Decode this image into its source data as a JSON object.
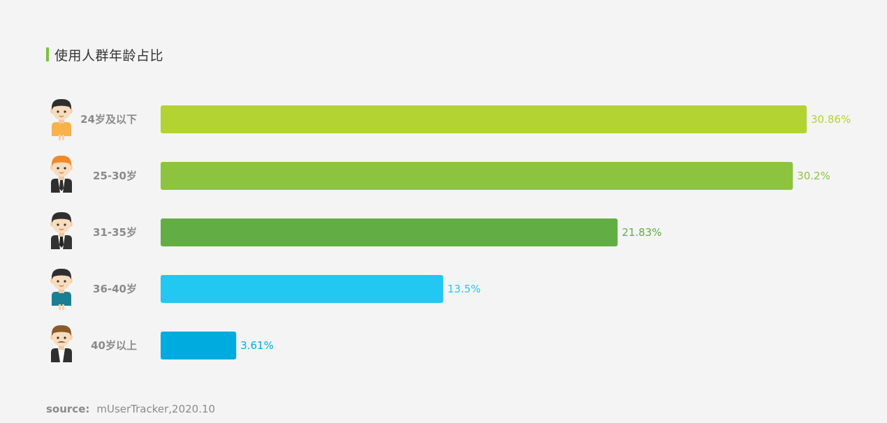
{
  "chart_data": {
    "type": "bar",
    "orientation": "horizontal",
    "title": "使用人群年龄占比",
    "categories": [
      "24岁及以下",
      "25-30岁",
      "31-35岁",
      "36-40岁",
      "40岁以上"
    ],
    "values": [
      30.86,
      30.2,
      21.83,
      13.5,
      3.61
    ],
    "value_labels": [
      "30.86%",
      "30.2%",
      "21.83%",
      "13.5%",
      "3.61%"
    ],
    "colors": [
      "#b3d332",
      "#8cc43f",
      "#63ad45",
      "#22c7f2",
      "#00abe0"
    ],
    "xlim": [
      0,
      30.86
    ],
    "grid": false,
    "legend": "none",
    "category_icons": [
      "young-man-icon",
      "man-orange-hair-icon",
      "man-suit-icon",
      "man-teal-shirt-icon",
      "man-mustache-icon"
    ]
  },
  "source": {
    "label": "source:",
    "text": "mUserTracker,2020.10"
  },
  "colors": {
    "title_marker": "#7cc240",
    "background": "#f4f4f4"
  }
}
